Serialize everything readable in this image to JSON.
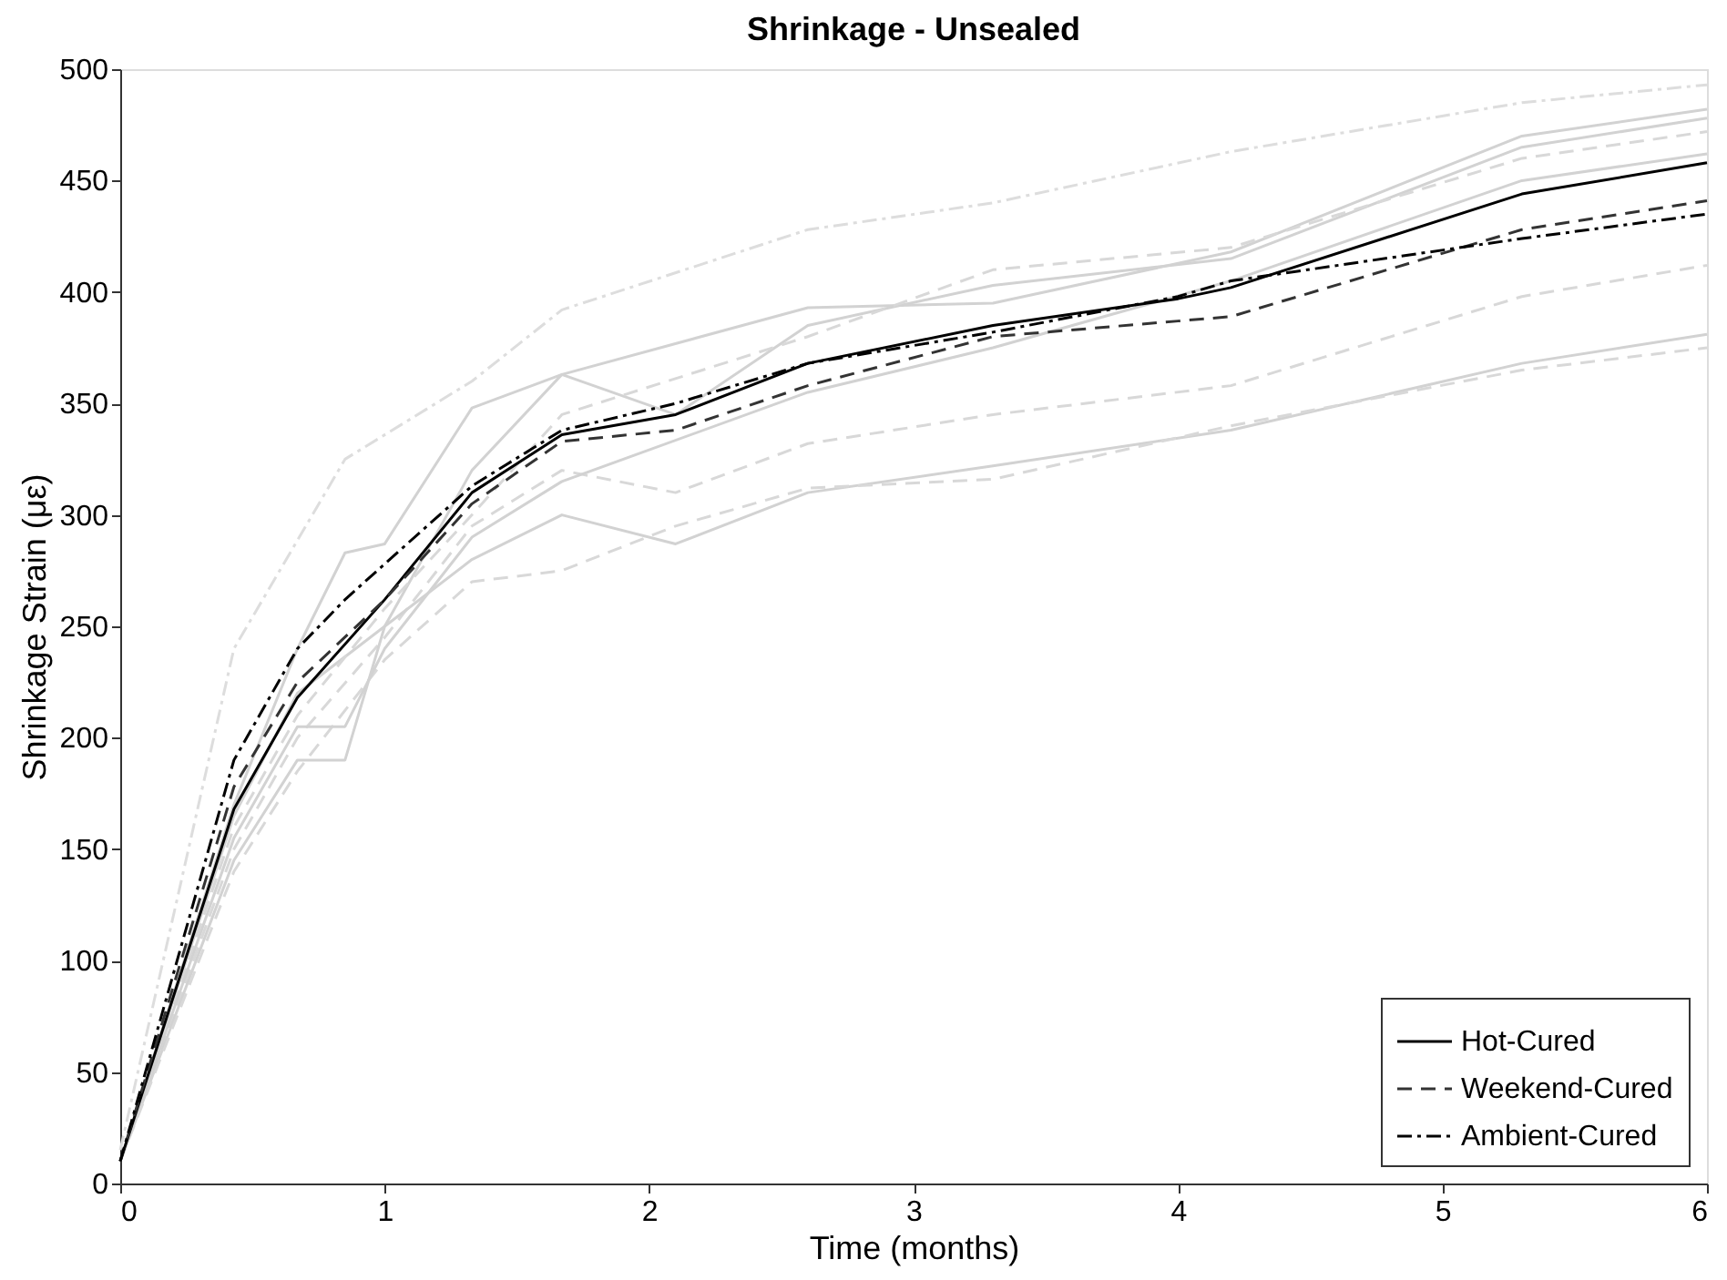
{
  "chart_data": {
    "type": "line",
    "title": "Shrinkage  - Unsealed",
    "xlabel": "Time (months)",
    "ylabel": "Shrinkage Strain (με)",
    "xlim": [
      0,
      6
    ],
    "xticks": [
      0,
      1,
      2,
      3,
      4,
      5,
      6
    ],
    "ylim": [
      0,
      500
    ],
    "yticks": [
      0,
      50,
      100,
      150,
      200,
      250,
      300,
      350,
      400,
      450,
      500
    ],
    "grid": false,
    "legend": "bottom right",
    "marker": "none",
    "series": [
      {
        "color": "#dddddd",
        "line_style": "dashdot",
        "x": [
          0,
          0.43,
          0.85,
          1.33,
          1.67,
          2.6,
          3.3,
          4.2,
          5.3,
          6
        ],
        "values": [
          15,
          240,
          325,
          360,
          392,
          428,
          440,
          463,
          485,
          493
        ]
      },
      {
        "color": "#d2d2d2",
        "line_style": "solid",
        "x": [
          0,
          0.43,
          0.67,
          0.85,
          1.0,
          1.33,
          1.67,
          2.6,
          3.3,
          4.2,
          5.3,
          6
        ],
        "values": [
          10,
          170,
          240,
          283,
          287,
          348,
          363,
          393,
          395,
          418,
          470,
          482
        ]
      },
      {
        "color": "#d2d2d2",
        "line_style": "solid",
        "x": [
          0,
          0.43,
          0.67,
          1.0,
          1.33,
          1.67,
          2.1,
          2.6,
          3.3,
          4.2,
          5.3,
          6
        ],
        "values": [
          10,
          165,
          220,
          250,
          320,
          363,
          345,
          385,
          403,
          415,
          465,
          478
        ]
      },
      {
        "color": "#d8d8d8",
        "line_style": "dashed",
        "x": [
          0,
          0.43,
          0.67,
          1.0,
          1.33,
          1.67,
          2.6,
          3.3,
          4.2,
          5.3,
          6
        ],
        "values": [
          10,
          160,
          210,
          258,
          300,
          345,
          380,
          410,
          420,
          460,
          472
        ]
      },
      {
        "color": "#d8d8d8",
        "line_style": "dashed",
        "x": [
          0,
          0.43,
          0.67,
          1.0,
          1.33,
          1.67,
          2.1,
          2.6,
          3.3,
          4.2,
          5.3,
          6
        ],
        "values": [
          10,
          150,
          200,
          245,
          295,
          320,
          310,
          332,
          345,
          358,
          398,
          412
        ]
      },
      {
        "color": "#d2d2d2",
        "line_style": "solid",
        "x": [
          0,
          0.43,
          0.67,
          0.85,
          1.0,
          1.33,
          1.67,
          2.1,
          2.6,
          3.3,
          4.2,
          5.3,
          6
        ],
        "values": [
          10,
          145,
          190,
          190,
          250,
          280,
          300,
          287,
          310,
          322,
          338,
          368,
          381
        ]
      },
      {
        "color": "#d8d8d8",
        "line_style": "dashed",
        "x": [
          0,
          0.43,
          0.67,
          1.0,
          1.33,
          1.67,
          2.1,
          2.6,
          3.3,
          4.2,
          5.3,
          6
        ],
        "values": [
          10,
          140,
          185,
          235,
          270,
          275,
          295,
          312,
          316,
          340,
          365,
          375
        ]
      },
      {
        "color": "#d2d2d2",
        "line_style": "solid",
        "x": [
          0,
          0.43,
          0.67,
          0.85,
          1.0,
          1.33,
          1.67,
          2.6,
          3.3,
          4.2,
          5.3,
          6
        ],
        "values": [
          10,
          155,
          205,
          205,
          240,
          290,
          315,
          355,
          375,
          405,
          450,
          462
        ]
      },
      {
        "name": "Hot-Cured",
        "color": "#000000",
        "line_style": "solid",
        "x": [
          0,
          0.43,
          0.67,
          1.0,
          1.33,
          1.67,
          2.1,
          2.6,
          3.3,
          4.0,
          4.2,
          5.3,
          6
        ],
        "values": [
          10,
          168,
          218,
          262,
          310,
          336,
          345,
          368,
          385,
          397,
          402,
          444,
          458
        ]
      },
      {
        "name": "Weekend-Cured",
        "color": "#333333",
        "line_style": "dashed",
        "x": [
          0,
          0.43,
          0.67,
          1.0,
          1.33,
          1.67,
          2.1,
          2.6,
          3.3,
          4.0,
          4.2,
          5.3,
          6
        ],
        "values": [
          10,
          178,
          225,
          262,
          305,
          333,
          338,
          358,
          380,
          387,
          389,
          428,
          441
        ]
      },
      {
        "name": "Ambient-Cured",
        "color": "#000000",
        "line_style": "dashdot",
        "x": [
          0,
          0.43,
          0.67,
          0.85,
          1.0,
          1.33,
          1.67,
          2.1,
          2.6,
          3.3,
          4.0,
          4.2,
          5.3,
          6
        ],
        "values": [
          10,
          190,
          240,
          262,
          278,
          313,
          338,
          350,
          368,
          382,
          398,
          405,
          424,
          435
        ]
      }
    ]
  }
}
